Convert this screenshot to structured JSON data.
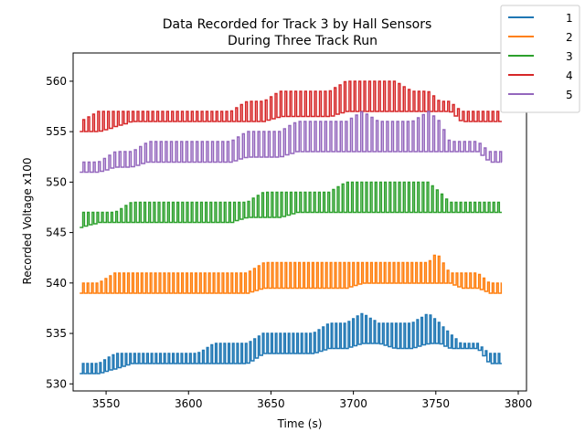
{
  "chart_data": {
    "type": "line",
    "title": "Data Recorded for Track 3 by Hall Sensors",
    "subtitle": "During Three Track Run",
    "xlabel": "Time (s)",
    "ylabel": "Recorded Voltage x100",
    "xlim": [
      3530,
      3805
    ],
    "ylim": [
      529.3,
      562.8
    ],
    "xticks": [
      3550,
      3600,
      3650,
      3700,
      3750,
      3800
    ],
    "yticks": [
      530,
      535,
      540,
      545,
      550,
      555,
      560
    ],
    "grid": false,
    "legend_position": "top-right",
    "series": [
      {
        "name": "1",
        "color": "#1f77b4",
        "x": [
          3534,
          3545,
          3555,
          3565,
          3575,
          3585,
          3595,
          3605,
          3615,
          3625,
          3635,
          3645,
          3655,
          3665,
          3675,
          3685,
          3695,
          3705,
          3715,
          3725,
          3735,
          3745,
          3752,
          3758,
          3765,
          3775,
          3782,
          3790
        ],
        "low": [
          531,
          531,
          531.5,
          532,
          532,
          532,
          532,
          532,
          532,
          532,
          532,
          533,
          533,
          533,
          533,
          533.5,
          533.5,
          534,
          534,
          533.5,
          533.5,
          534,
          534,
          533.5,
          533.5,
          533.5,
          532,
          532
        ],
        "high": [
          532,
          532,
          533,
          533,
          533,
          533,
          533,
          533,
          534,
          534,
          534,
          535,
          535,
          535,
          535,
          536,
          536,
          537,
          536,
          536,
          536,
          537,
          536,
          535,
          534,
          534,
          533,
          533
        ]
      },
      {
        "name": "2",
        "color": "#ff7f0e",
        "x": [
          3534,
          3545,
          3555,
          3565,
          3575,
          3585,
          3595,
          3605,
          3615,
          3625,
          3635,
          3645,
          3655,
          3665,
          3675,
          3685,
          3695,
          3705,
          3715,
          3725,
          3735,
          3745,
          3750,
          3758,
          3765,
          3775,
          3782,
          3790
        ],
        "low": [
          539,
          539,
          539,
          539,
          539,
          539,
          539,
          539,
          539,
          539,
          539,
          539.5,
          539.5,
          539.5,
          539.5,
          539.5,
          539.5,
          540,
          540,
          540,
          540,
          540,
          540,
          540,
          539.5,
          539.5,
          539,
          539
        ],
        "high": [
          540,
          540,
          541,
          541,
          541,
          541,
          541,
          541,
          541,
          541,
          541,
          542,
          542,
          542,
          542,
          542,
          542,
          542,
          542,
          542,
          542,
          542,
          543,
          541,
          541,
          541,
          540,
          540
        ]
      },
      {
        "name": "3",
        "color": "#2ca02c",
        "x": [
          3534,
          3545,
          3555,
          3565,
          3575,
          3585,
          3595,
          3605,
          3615,
          3625,
          3635,
          3645,
          3655,
          3665,
          3675,
          3685,
          3695,
          3705,
          3715,
          3725,
          3735,
          3745,
          3752,
          3758,
          3765,
          3775,
          3782,
          3790
        ],
        "low": [
          545.5,
          546,
          546,
          546,
          546,
          546,
          546,
          546,
          546,
          546,
          546.5,
          546.5,
          546.5,
          547,
          547,
          547,
          547,
          547,
          547,
          547,
          547,
          547,
          547,
          547,
          547,
          547,
          547,
          547
        ],
        "high": [
          547,
          547,
          547,
          548,
          548,
          548,
          548,
          548,
          548,
          548,
          548,
          549,
          549,
          549,
          549,
          549,
          550,
          550,
          550,
          550,
          550,
          550,
          549,
          548,
          548,
          548,
          548,
          548
        ]
      },
      {
        "name": "4",
        "color": "#d62728",
        "x": [
          3534,
          3545,
          3555,
          3565,
          3575,
          3585,
          3595,
          3605,
          3615,
          3625,
          3635,
          3645,
          3655,
          3665,
          3675,
          3685,
          3695,
          3705,
          3715,
          3725,
          3735,
          3745,
          3752,
          3758,
          3765,
          3775,
          3782,
          3790
        ],
        "low": [
          555,
          555,
          555.5,
          556,
          556,
          556,
          556,
          556,
          556,
          556,
          556,
          556,
          556.5,
          556.5,
          556.5,
          556.5,
          557,
          557,
          557,
          557,
          557,
          557,
          557,
          557,
          556,
          556,
          556,
          556
        ],
        "high": [
          556,
          557,
          557,
          557,
          557,
          557,
          557,
          557,
          557,
          557,
          558,
          558,
          559,
          559,
          559,
          559,
          560,
          560,
          560,
          560,
          559,
          559,
          558,
          558,
          557,
          557,
          557,
          557
        ]
      },
      {
        "name": "5",
        "color": "#9467bd",
        "x": [
          3534,
          3545,
          3555,
          3565,
          3575,
          3585,
          3595,
          3605,
          3615,
          3625,
          3635,
          3645,
          3655,
          3665,
          3675,
          3685,
          3695,
          3705,
          3715,
          3725,
          3735,
          3745,
          3752,
          3758,
          3765,
          3775,
          3782,
          3790
        ],
        "low": [
          551,
          551,
          551.5,
          551.5,
          552,
          552,
          552,
          552,
          552,
          552,
          552.5,
          552.5,
          552.5,
          553,
          553,
          553,
          553,
          553,
          553,
          553,
          553,
          553,
          553,
          553,
          553,
          553,
          552,
          552
        ],
        "high": [
          552,
          552,
          553,
          553,
          554,
          554,
          554,
          554,
          554,
          554,
          555,
          555,
          555,
          556,
          556,
          556,
          556,
          557,
          556,
          556,
          556,
          557,
          556,
          554,
          554,
          554,
          553,
          553
        ]
      }
    ]
  }
}
